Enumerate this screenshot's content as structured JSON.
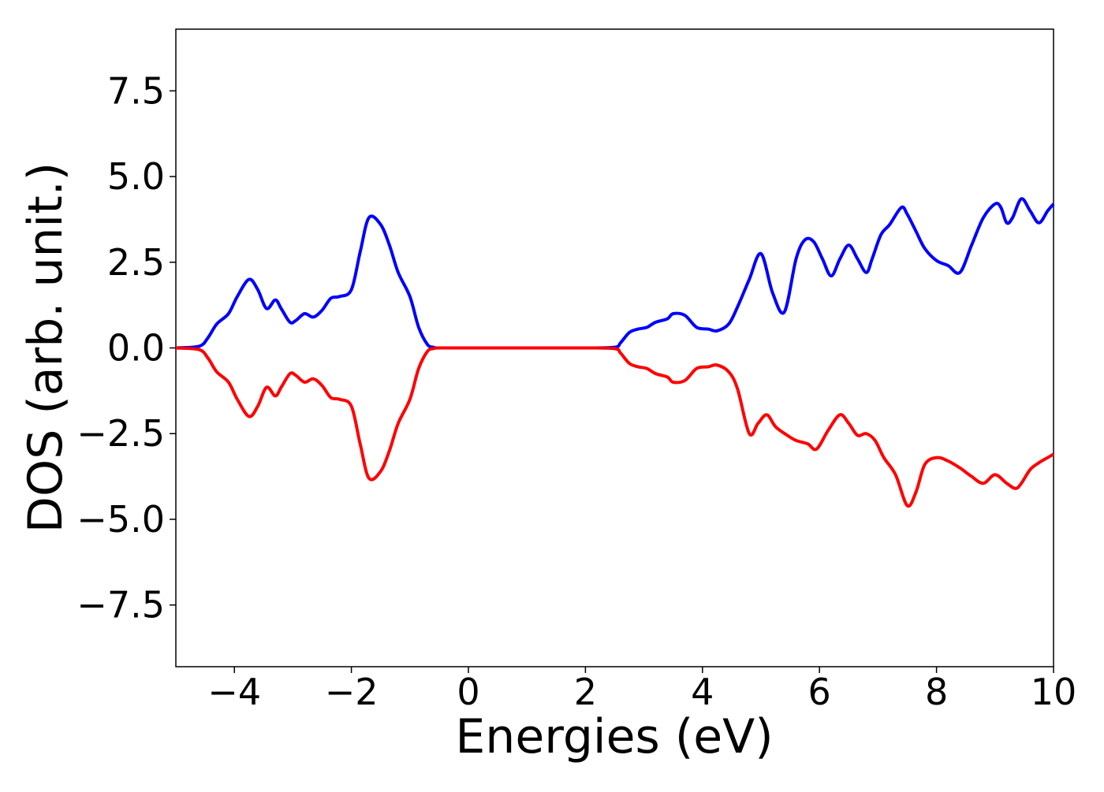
{
  "chart_data": {
    "type": "line",
    "title": "",
    "xlabel": "Energies (eV)",
    "ylabel": "DOS (arb. unit.)",
    "xlim": [
      -5,
      10
    ],
    "ylim": [
      -9.3,
      9.3
    ],
    "xticks": [
      -4,
      -2,
      0,
      2,
      4,
      6,
      8,
      10
    ],
    "xtick_labels": [
      "−4",
      "−2",
      "0",
      "2",
      "4",
      "6",
      "8",
      "10"
    ],
    "yticks": [
      7.5,
      5.0,
      2.5,
      0.0,
      -2.5,
      -5.0,
      -7.5
    ],
    "ytick_labels": [
      "7.5",
      "5.0",
      "2.5",
      "0.0",
      "−2.5",
      "−5.0",
      "−7.5"
    ],
    "grid": false,
    "legend": false,
    "series": [
      {
        "color": "#0000ff",
        "x": [
          -5.0,
          -4.6,
          -4.45,
          -4.3,
          -4.1,
          -3.95,
          -3.75,
          -3.6,
          -3.45,
          -3.3,
          -3.2,
          -3.05,
          -2.95,
          -2.8,
          -2.65,
          -2.5,
          -2.35,
          -2.2,
          -2.0,
          -1.85,
          -1.7,
          -1.5,
          -1.35,
          -1.2,
          -1.0,
          -0.85,
          -0.7,
          -0.6,
          -0.5,
          0.0,
          1.0,
          2.0,
          2.5,
          2.6,
          2.75,
          2.9,
          3.05,
          3.2,
          3.4,
          3.5,
          3.7,
          3.9,
          4.1,
          4.25,
          4.45,
          4.6,
          4.8,
          5.0,
          5.2,
          5.4,
          5.6,
          5.75,
          5.9,
          6.05,
          6.2,
          6.35,
          6.5,
          6.65,
          6.8,
          6.9,
          7.05,
          7.2,
          7.4,
          7.5,
          7.65,
          7.8,
          8.0,
          8.2,
          8.4,
          8.6,
          8.8,
          9.0,
          9.1,
          9.2,
          9.3,
          9.45,
          9.6,
          9.75,
          9.9,
          10.0
        ],
        "values": [
          0.0,
          0.05,
          0.3,
          0.7,
          1.0,
          1.5,
          2.0,
          1.7,
          1.15,
          1.4,
          1.15,
          0.75,
          0.8,
          1.0,
          0.9,
          1.1,
          1.45,
          1.5,
          1.7,
          2.8,
          3.8,
          3.6,
          3.0,
          2.2,
          1.5,
          0.6,
          0.1,
          0.02,
          0.0,
          0.0,
          0.0,
          0.0,
          0.02,
          0.15,
          0.45,
          0.55,
          0.6,
          0.75,
          0.85,
          1.0,
          0.95,
          0.6,
          0.55,
          0.5,
          0.7,
          1.2,
          2.0,
          2.75,
          1.6,
          1.05,
          2.6,
          3.15,
          3.1,
          2.6,
          2.1,
          2.6,
          3.0,
          2.6,
          2.2,
          2.6,
          3.3,
          3.6,
          4.1,
          3.9,
          3.4,
          2.9,
          2.55,
          2.4,
          2.2,
          3.0,
          3.8,
          4.2,
          4.1,
          3.65,
          3.8,
          4.35,
          4.0,
          3.65,
          4.0,
          4.2
        ]
      },
      {
        "color": "#ff0000",
        "x": [
          -5.0,
          -4.6,
          -4.45,
          -4.3,
          -4.1,
          -3.95,
          -3.75,
          -3.6,
          -3.45,
          -3.3,
          -3.2,
          -3.05,
          -2.95,
          -2.8,
          -2.65,
          -2.5,
          -2.35,
          -2.2,
          -2.0,
          -1.85,
          -1.7,
          -1.5,
          -1.35,
          -1.2,
          -1.0,
          -0.85,
          -0.7,
          -0.6,
          -0.5,
          0.0,
          1.0,
          2.0,
          2.5,
          2.6,
          2.75,
          2.9,
          3.05,
          3.2,
          3.4,
          3.5,
          3.7,
          3.9,
          4.1,
          4.25,
          4.45,
          4.6,
          4.8,
          4.95,
          5.1,
          5.25,
          5.45,
          5.6,
          5.8,
          5.95,
          6.15,
          6.35,
          6.5,
          6.65,
          6.8,
          6.95,
          7.1,
          7.3,
          7.5,
          7.65,
          7.8,
          8.0,
          8.2,
          8.4,
          8.6,
          8.8,
          9.0,
          9.2,
          9.35,
          9.45,
          9.6,
          9.75,
          9.9,
          10.0
        ],
        "values": [
          0.0,
          -0.05,
          -0.3,
          -0.7,
          -1.0,
          -1.5,
          -2.0,
          -1.7,
          -1.15,
          -1.4,
          -1.15,
          -0.75,
          -0.8,
          -1.0,
          -0.9,
          -1.1,
          -1.45,
          -1.5,
          -1.7,
          -2.8,
          -3.8,
          -3.6,
          -3.0,
          -2.2,
          -1.5,
          -0.6,
          -0.1,
          -0.02,
          0.0,
          0.0,
          0.0,
          0.0,
          -0.02,
          -0.15,
          -0.45,
          -0.55,
          -0.6,
          -0.75,
          -0.85,
          -1.0,
          -0.95,
          -0.6,
          -0.55,
          -0.5,
          -0.7,
          -1.2,
          -2.5,
          -2.2,
          -1.95,
          -2.3,
          -2.55,
          -2.7,
          -2.8,
          -2.95,
          -2.4,
          -1.95,
          -2.2,
          -2.55,
          -2.5,
          -2.7,
          -3.2,
          -3.7,
          -4.6,
          -4.2,
          -3.4,
          -3.2,
          -3.3,
          -3.5,
          -3.75,
          -3.95,
          -3.7,
          -3.95,
          -4.1,
          -3.95,
          -3.55,
          -3.35,
          -3.2,
          -3.1
        ]
      }
    ]
  }
}
